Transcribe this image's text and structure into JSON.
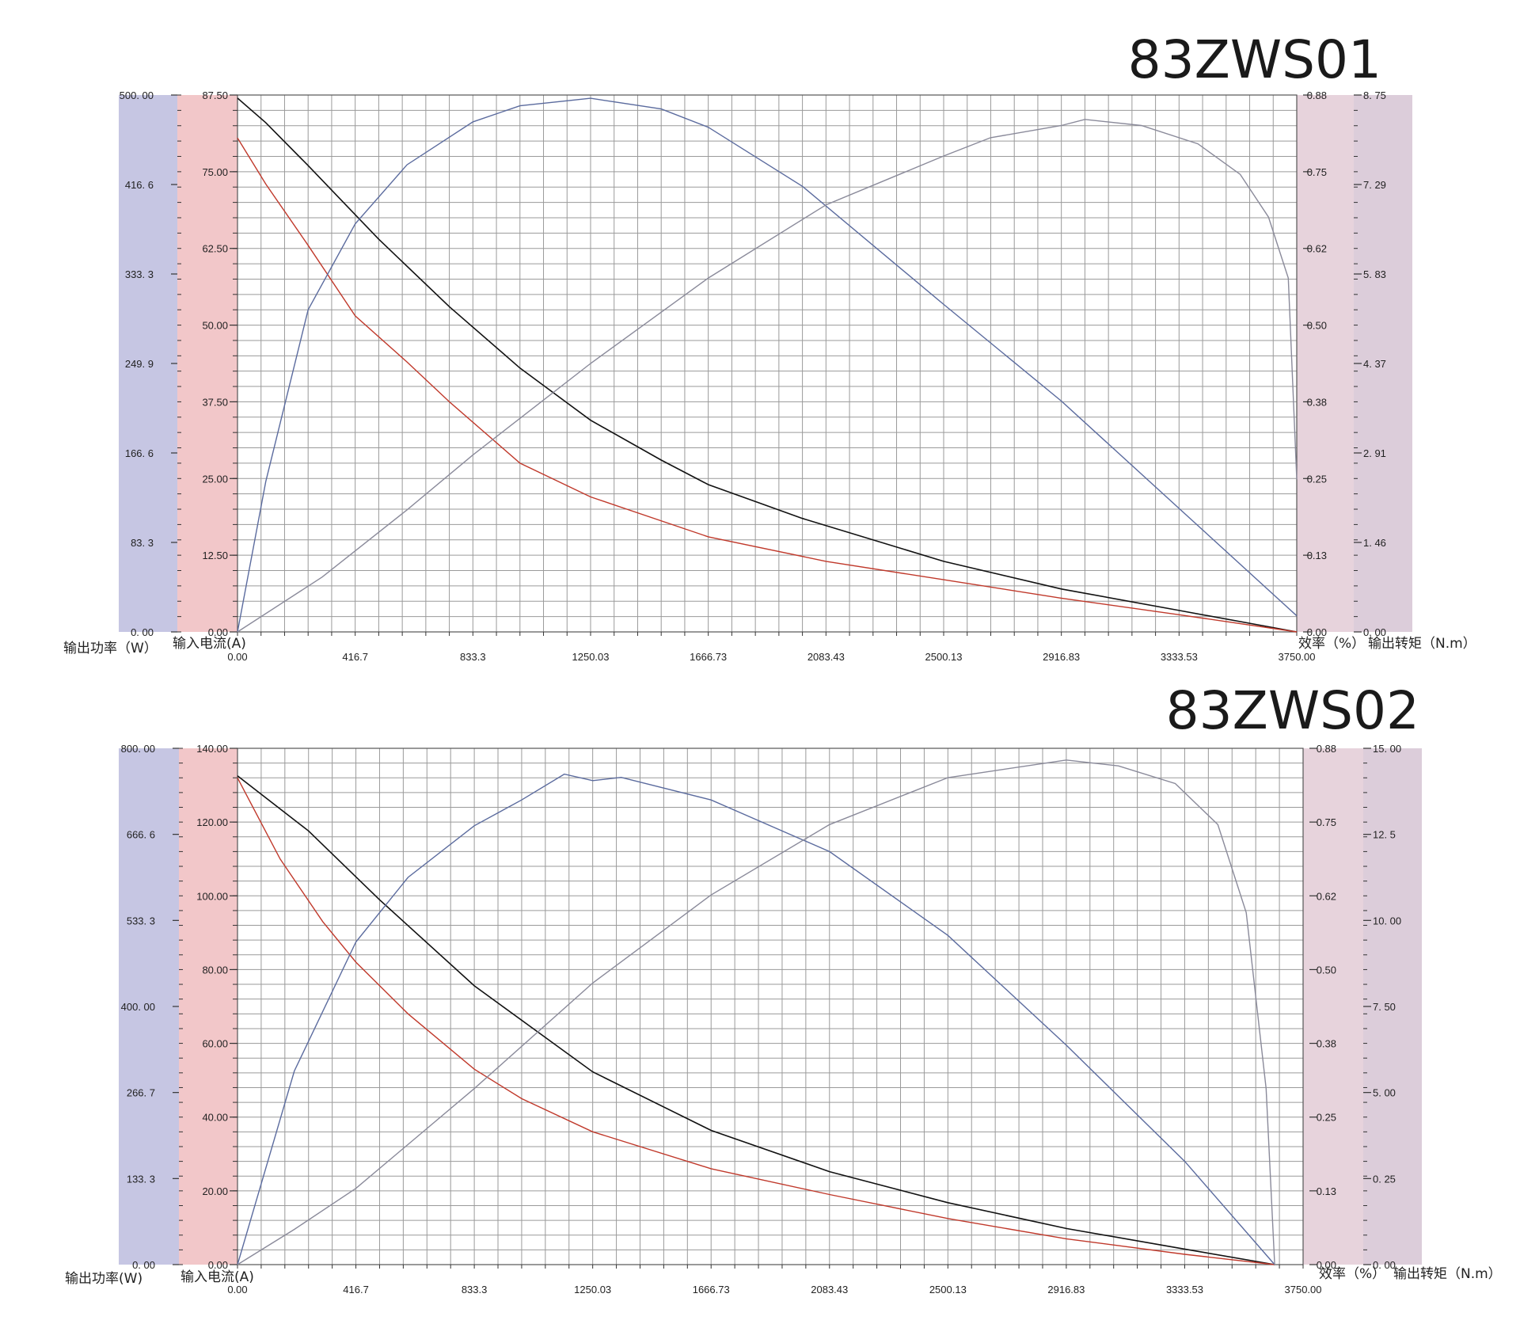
{
  "colors": {
    "power_band": "#c6c6e3",
    "current_band": "#f2c7c9",
    "efficiency_band": "#e7d3dc",
    "torque_band": "#dccdda",
    "grid": "#9a9a9a",
    "power_line": "#5b6b9e",
    "current_line": "#c0392b",
    "torque_line": "#111111",
    "efficiency_line": "#8a8a9a"
  },
  "chart_data": [
    {
      "type": "line",
      "title": "83ZWS01",
      "xlabel": "",
      "x_ticks": [
        "0.00",
        "416.7",
        "833.3",
        "1250.03",
        "1666.73",
        "2083.43",
        "2500.13",
        "2916.83",
        "3333.53",
        "3750.00"
      ],
      "xlim": [
        0,
        3750
      ],
      "axes": {
        "power": {
          "label": "输出功率（W）",
          "range": [
            0,
            500
          ],
          "ticks": [
            "0. 00",
            "83. 3",
            "166. 6",
            "249. 9",
            "333. 3",
            "416. 6",
            "500. 00"
          ]
        },
        "current": {
          "label": "输入电流(A)",
          "range": [
            0,
            87.5
          ],
          "ticks": [
            "0.00",
            "12.50",
            "25.00",
            "37.50",
            "50.00",
            "62.50",
            "75.00",
            "87.50"
          ]
        },
        "efficiency": {
          "label": "效率（%）",
          "range": [
            0,
            0.88
          ],
          "ticks": [
            "0.00",
            "0.13",
            "0.25",
            "0.38",
            "0.50",
            "0.62",
            "0.75",
            "0.88"
          ]
        },
        "torque": {
          "label": "输出转矩（N.m）",
          "range": [
            0,
            8.75
          ],
          "ticks": [
            "0. 00",
            "1. 46",
            "2. 91",
            "4. 37",
            "5. 83",
            "7. 29",
            "8. 75"
          ]
        }
      },
      "series": [
        {
          "axis": "torque",
          "key": "torque_line",
          "x": [
            0,
            100,
            250,
            500,
            750,
            1000,
            1250,
            1500,
            1666.73,
            2000,
            2500,
            2916.83,
            3333.53,
            3750
          ],
          "values": [
            8.7,
            8.3,
            7.6,
            6.4,
            5.3,
            4.3,
            3.45,
            2.8,
            2.4,
            1.85,
            1.15,
            0.7,
            0.35,
            0.0
          ]
        },
        {
          "axis": "current",
          "key": "current_line",
          "x": [
            0,
            100,
            250,
            416.7,
            600,
            750,
            1000,
            1250,
            1666.73,
            2083.43,
            2500.13,
            2916.83,
            3333.53,
            3750
          ],
          "values": [
            80.5,
            73,
            63,
            51.5,
            44,
            37.5,
            27.5,
            22,
            15.5,
            11.5,
            8.5,
            5.5,
            2.8,
            0.0
          ]
        },
        {
          "axis": "power",
          "key": "power_line",
          "x": [
            0,
            100,
            250,
            416.7,
            600,
            833.3,
            1000,
            1250.03,
            1500,
            1666.73,
            2000,
            2500.13,
            2916.83,
            3333.53,
            3750
          ],
          "values": [
            0,
            140,
            300,
            380,
            435,
            475,
            490,
            497,
            487,
            470,
            415,
            305,
            215,
            115,
            15
          ]
        },
        {
          "axis": "efficiency",
          "key": "efficiency_line",
          "x": [
            0,
            300,
            600,
            833.3,
            1000,
            1250.03,
            1666.73,
            2083.43,
            2500.13,
            2666,
            2916.83,
            3000,
            3200,
            3400,
            3550,
            3650,
            3720,
            3750
          ],
          "values": [
            0.0,
            0.09,
            0.2,
            0.29,
            0.35,
            0.44,
            0.58,
            0.7,
            0.78,
            0.81,
            0.83,
            0.84,
            0.83,
            0.8,
            0.75,
            0.68,
            0.58,
            0.25
          ]
        }
      ]
    },
    {
      "type": "line",
      "title": "83ZWS02",
      "xlabel": "",
      "x_ticks": [
        "0.00",
        "416.7",
        "833.3",
        "1250.03",
        "1666.73",
        "2083.43",
        "2500.13",
        "2916.83",
        "3333.53",
        "3750.00"
      ],
      "xlim": [
        0,
        3750
      ],
      "axes": {
        "power": {
          "label": "输出功率(W)",
          "range": [
            0,
            800
          ],
          "ticks": [
            "0. 00",
            "133. 3",
            "266. 7",
            "400. 00",
            "533. 3",
            "666. 6",
            "800. 00"
          ]
        },
        "current": {
          "label": "输入电流(A)",
          "range": [
            0,
            140
          ],
          "ticks": [
            "0.00",
            "20.00",
            "40.00",
            "60.00",
            "80.00",
            "100.00",
            "120.00",
            "140.00"
          ]
        },
        "efficiency": {
          "label": "效率（%）",
          "range": [
            0,
            0.88
          ],
          "ticks": [
            "0.00",
            "0.13",
            "0.25",
            "0.38",
            "0.50",
            "0.62",
            "0.75",
            "0.88"
          ]
        },
        "torque": {
          "label": "输出转矩（N.m）",
          "range": [
            0,
            15
          ],
          "ticks": [
            "0. 00",
            "0. 25",
            "5. 00",
            "7. 50",
            "10. 00",
            "12. 5",
            "15. 00"
          ]
        }
      },
      "series": [
        {
          "axis": "torque",
          "key": "torque_line",
          "x": [
            0,
            250,
            500,
            833.3,
            1250.03,
            1666.73,
            2083.43,
            2500.13,
            2916.83,
            3333.53,
            3650
          ],
          "values": [
            14.2,
            12.6,
            10.6,
            8.1,
            5.6,
            3.9,
            2.7,
            1.8,
            1.05,
            0.45,
            0.0
          ]
        },
        {
          "axis": "current",
          "key": "current_line",
          "x": [
            0,
            150,
            300,
            416.7,
            600,
            833.3,
            1000,
            1250.03,
            1666.73,
            2083.43,
            2500.13,
            2916.83,
            3333.53,
            3650
          ],
          "values": [
            132,
            110,
            93,
            82,
            68,
            53,
            45,
            36,
            26,
            19,
            12.5,
            7,
            2.8,
            0.0
          ]
        },
        {
          "axis": "power",
          "key": "power_line",
          "x": [
            0,
            200,
            416.7,
            600,
            833.3,
            1000,
            1150,
            1250.03,
            1350,
            1666.73,
            2083.43,
            2500.13,
            2916.83,
            3333.53,
            3650
          ],
          "values": [
            0,
            300,
            500,
            600,
            680,
            720,
            760,
            750,
            755,
            720,
            640,
            510,
            340,
            160,
            0
          ]
        },
        {
          "axis": "efficiency",
          "key": "efficiency_line",
          "x": [
            0,
            200,
            416.7,
            833.3,
            1250.03,
            1666.73,
            2083.43,
            2500.13,
            2916.83,
            3100,
            3300,
            3450,
            3550,
            3620,
            3650
          ],
          "values": [
            0.0,
            0.06,
            0.13,
            0.3,
            0.48,
            0.63,
            0.75,
            0.83,
            0.86,
            0.85,
            0.82,
            0.75,
            0.6,
            0.3,
            0.0
          ]
        }
      ]
    }
  ]
}
